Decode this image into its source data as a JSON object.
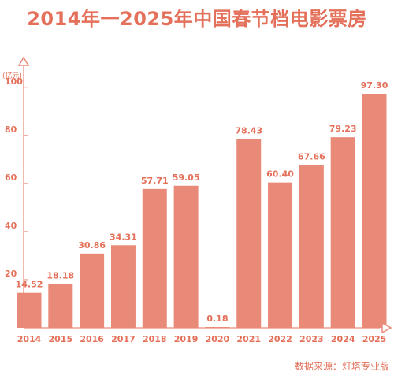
{
  "title": "2014年一2025年中国春节档电影票房",
  "source": "数据来源：灯塔专业版",
  "colors": {
    "bar": "#e98a78",
    "axis": "#e98a78",
    "text": "#e4705a",
    "grid": "#f1c3b8"
  },
  "chart_data": {
    "type": "bar",
    "title": "2014年一2025年中国春节档电影票房",
    "ylabel": "(亿元)",
    "xlabel": "",
    "ylim": [
      0,
      110
    ],
    "yticks": [
      20,
      40,
      60,
      80,
      100
    ],
    "grid": false,
    "categories": [
      "2014",
      "2015",
      "2016",
      "2017",
      "2018",
      "2019",
      "2020",
      "2021",
      "2022",
      "2023",
      "2024",
      "2025"
    ],
    "values": [
      14.52,
      18.18,
      30.86,
      34.31,
      57.71,
      59.05,
      0.18,
      78.43,
      60.4,
      67.66,
      79.23,
      97.3
    ],
    "value_labels": [
      "14.52",
      "18.18",
      "30.86",
      "34.31",
      "57.71",
      "59.05",
      "0.18",
      "78.43",
      "60.40",
      "67.66",
      "79.23",
      "97.30"
    ]
  }
}
